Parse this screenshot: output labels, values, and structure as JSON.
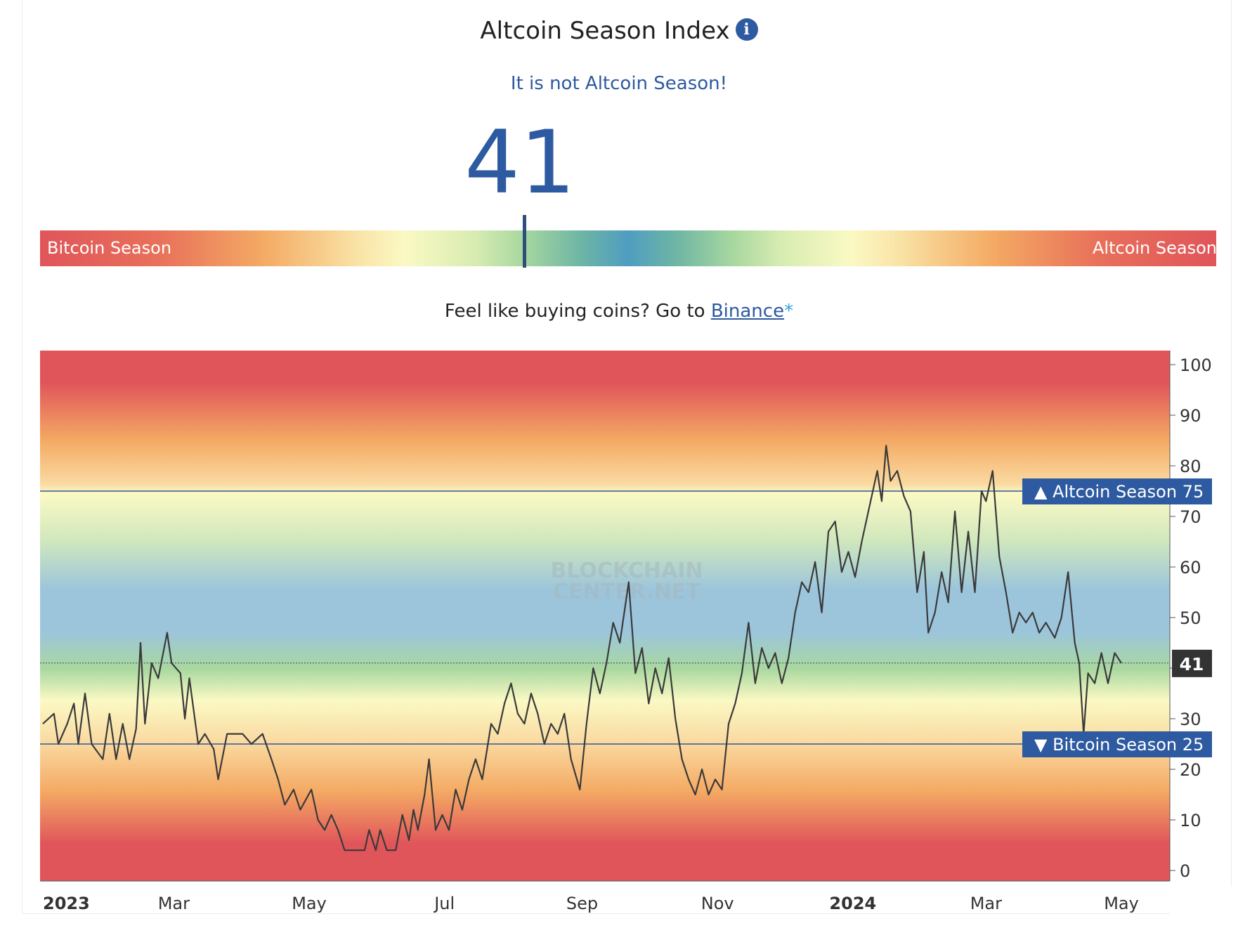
{
  "header": {
    "title": "Altcoin Season Index",
    "subtitle": "It is not Altcoin Season!",
    "value": "41"
  },
  "gauge": {
    "left_label": "Bitcoin Season",
    "right_label": "Altcoin Season",
    "value": 41
  },
  "promo": {
    "text": "Feel like buying coins? Go to ",
    "link": "Binance",
    "star": "*"
  },
  "watermark": [
    "BLOCKCHAIN",
    "CENTER.NET"
  ],
  "colors": {
    "accent": "#2d5aa0",
    "line": "#3a3a3a",
    "red": "#e0555a",
    "orange": "#f4aa64",
    "yellow": "#fbf9c4",
    "green": "#a9d8a0",
    "blue": "#9cc5dc"
  },
  "chart_data": {
    "type": "line",
    "ylim": [
      0,
      100
    ],
    "yticks": [
      0,
      10,
      20,
      30,
      40,
      50,
      60,
      70,
      80,
      90,
      100
    ],
    "xlim": [
      "2023-01-01",
      "2024-05-01"
    ],
    "xticks": [
      {
        "date": "2023-01-01",
        "label": "2023",
        "bold": true
      },
      {
        "date": "2023-03-01",
        "label": "Mar",
        "bold": false
      },
      {
        "date": "2023-05-01",
        "label": "May",
        "bold": false
      },
      {
        "date": "2023-07-01",
        "label": "Jul",
        "bold": false
      },
      {
        "date": "2023-09-01",
        "label": "Sep",
        "bold": false
      },
      {
        "date": "2023-11-01",
        "label": "Nov",
        "bold": false
      },
      {
        "date": "2024-01-01",
        "label": "2024",
        "bold": true
      },
      {
        "date": "2024-03-01",
        "label": "Mar",
        "bold": false
      },
      {
        "date": "2024-05-01",
        "label": "May",
        "bold": false
      }
    ],
    "thresholds": [
      {
        "value": 75,
        "label": "▲ Altcoin Season",
        "value_label": "75"
      },
      {
        "value": 25,
        "label": "▼ Bitcoin Season",
        "value_label": "25"
      }
    ],
    "current": {
      "value": 41,
      "label": "41"
    },
    "series": [
      {
        "points": [
          [
            "2023-01-01",
            29
          ],
          [
            "2023-01-06",
            31
          ],
          [
            "2023-01-08",
            25
          ],
          [
            "2023-01-12",
            29
          ],
          [
            "2023-01-15",
            33
          ],
          [
            "2023-01-17",
            25
          ],
          [
            "2023-01-20",
            35
          ],
          [
            "2023-01-23",
            25
          ],
          [
            "2023-01-28",
            22
          ],
          [
            "2023-01-31",
            31
          ],
          [
            "2023-02-03",
            22
          ],
          [
            "2023-02-06",
            29
          ],
          [
            "2023-02-09",
            22
          ],
          [
            "2023-02-12",
            28
          ],
          [
            "2023-02-14",
            45
          ],
          [
            "2023-02-16",
            29
          ],
          [
            "2023-02-19",
            41
          ],
          [
            "2023-02-22",
            38
          ],
          [
            "2023-02-26",
            47
          ],
          [
            "2023-02-28",
            41
          ],
          [
            "2023-03-04",
            39
          ],
          [
            "2023-03-06",
            30
          ],
          [
            "2023-03-08",
            38
          ],
          [
            "2023-03-12",
            25
          ],
          [
            "2023-03-15",
            27
          ],
          [
            "2023-03-19",
            24
          ],
          [
            "2023-03-21",
            18
          ],
          [
            "2023-03-25",
            27
          ],
          [
            "2023-04-01",
            27
          ],
          [
            "2023-04-05",
            25
          ],
          [
            "2023-04-10",
            27
          ],
          [
            "2023-04-14",
            22
          ],
          [
            "2023-04-17",
            18
          ],
          [
            "2023-04-20",
            13
          ],
          [
            "2023-04-24",
            16
          ],
          [
            "2023-04-27",
            12
          ],
          [
            "2023-05-02",
            16
          ],
          [
            "2023-05-05",
            10
          ],
          [
            "2023-05-08",
            8
          ],
          [
            "2023-05-11",
            11
          ],
          [
            "2023-05-14",
            8
          ],
          [
            "2023-05-17",
            4
          ],
          [
            "2023-05-21",
            4
          ],
          [
            "2023-05-26",
            4
          ],
          [
            "2023-05-28",
            8
          ],
          [
            "2023-05-31",
            4
          ],
          [
            "2023-06-02",
            8
          ],
          [
            "2023-06-05",
            4
          ],
          [
            "2023-06-09",
            4
          ],
          [
            "2023-06-12",
            11
          ],
          [
            "2023-06-15",
            6
          ],
          [
            "2023-06-17",
            12
          ],
          [
            "2023-06-19",
            8
          ],
          [
            "2023-06-22",
            15
          ],
          [
            "2023-06-24",
            22
          ],
          [
            "2023-06-27",
            8
          ],
          [
            "2023-06-30",
            11
          ],
          [
            "2023-07-03",
            8
          ],
          [
            "2023-07-06",
            16
          ],
          [
            "2023-07-09",
            12
          ],
          [
            "2023-07-12",
            18
          ],
          [
            "2023-07-15",
            22
          ],
          [
            "2023-07-18",
            18
          ],
          [
            "2023-07-22",
            29
          ],
          [
            "2023-07-25",
            27
          ],
          [
            "2023-07-28",
            33
          ],
          [
            "2023-07-31",
            37
          ],
          [
            "2023-08-03",
            31
          ],
          [
            "2023-08-06",
            29
          ],
          [
            "2023-08-09",
            35
          ],
          [
            "2023-08-12",
            31
          ],
          [
            "2023-08-15",
            25
          ],
          [
            "2023-08-18",
            29
          ],
          [
            "2023-08-21",
            27
          ],
          [
            "2023-08-24",
            31
          ],
          [
            "2023-08-27",
            22
          ],
          [
            "2023-08-31",
            16
          ],
          [
            "2023-09-03",
            29
          ],
          [
            "2023-09-06",
            40
          ],
          [
            "2023-09-09",
            35
          ],
          [
            "2023-09-12",
            41
          ],
          [
            "2023-09-15",
            49
          ],
          [
            "2023-09-18",
            45
          ],
          [
            "2023-09-22",
            57
          ],
          [
            "2023-09-25",
            39
          ],
          [
            "2023-09-28",
            44
          ],
          [
            "2023-10-01",
            33
          ],
          [
            "2023-10-04",
            40
          ],
          [
            "2023-10-07",
            35
          ],
          [
            "2023-10-10",
            42
          ],
          [
            "2023-10-13",
            30
          ],
          [
            "2023-10-16",
            22
          ],
          [
            "2023-10-19",
            18
          ],
          [
            "2023-10-22",
            15
          ],
          [
            "2023-10-25",
            20
          ],
          [
            "2023-10-28",
            15
          ],
          [
            "2023-10-31",
            18
          ],
          [
            "2023-11-03",
            16
          ],
          [
            "2023-11-06",
            29
          ],
          [
            "2023-11-09",
            33
          ],
          [
            "2023-11-12",
            39
          ],
          [
            "2023-11-15",
            49
          ],
          [
            "2023-11-18",
            37
          ],
          [
            "2023-11-21",
            44
          ],
          [
            "2023-11-24",
            40
          ],
          [
            "2023-11-27",
            43
          ],
          [
            "2023-11-30",
            37
          ],
          [
            "2023-12-03",
            42
          ],
          [
            "2023-12-06",
            51
          ],
          [
            "2023-12-09",
            57
          ],
          [
            "2023-12-12",
            55
          ],
          [
            "2023-12-15",
            61
          ],
          [
            "2023-12-18",
            51
          ],
          [
            "2023-12-21",
            67
          ],
          [
            "2023-12-24",
            69
          ],
          [
            "2023-12-27",
            59
          ],
          [
            "2023-12-30",
            63
          ],
          [
            "2024-01-02",
            58
          ],
          [
            "2024-01-05",
            65
          ],
          [
            "2024-01-09",
            73
          ],
          [
            "2024-01-12",
            79
          ],
          [
            "2024-01-14",
            73
          ],
          [
            "2024-01-16",
            84
          ],
          [
            "2024-01-18",
            77
          ],
          [
            "2024-01-21",
            79
          ],
          [
            "2024-01-24",
            74
          ],
          [
            "2024-01-27",
            71
          ],
          [
            "2024-01-30",
            55
          ],
          [
            "2024-02-02",
            63
          ],
          [
            "2024-02-04",
            47
          ],
          [
            "2024-02-07",
            51
          ],
          [
            "2024-02-10",
            59
          ],
          [
            "2024-02-13",
            53
          ],
          [
            "2024-02-16",
            71
          ],
          [
            "2024-02-19",
            55
          ],
          [
            "2024-02-22",
            67
          ],
          [
            "2024-02-25",
            55
          ],
          [
            "2024-02-28",
            75
          ],
          [
            "2024-03-01",
            73
          ],
          [
            "2024-03-04",
            79
          ],
          [
            "2024-03-07",
            62
          ],
          [
            "2024-03-10",
            55
          ],
          [
            "2024-03-13",
            47
          ],
          [
            "2024-03-16",
            51
          ],
          [
            "2024-03-19",
            49
          ],
          [
            "2024-03-22",
            51
          ],
          [
            "2024-03-25",
            47
          ],
          [
            "2024-03-28",
            49
          ],
          [
            "2024-04-01",
            46
          ],
          [
            "2024-04-04",
            50
          ],
          [
            "2024-04-07",
            59
          ],
          [
            "2024-04-10",
            45
          ],
          [
            "2024-04-12",
            41
          ],
          [
            "2024-04-14",
            27
          ],
          [
            "2024-04-16",
            39
          ],
          [
            "2024-04-19",
            37
          ],
          [
            "2024-04-22",
            43
          ],
          [
            "2024-04-25",
            37
          ],
          [
            "2024-04-28",
            43
          ],
          [
            "2024-05-01",
            41
          ]
        ]
      }
    ]
  }
}
